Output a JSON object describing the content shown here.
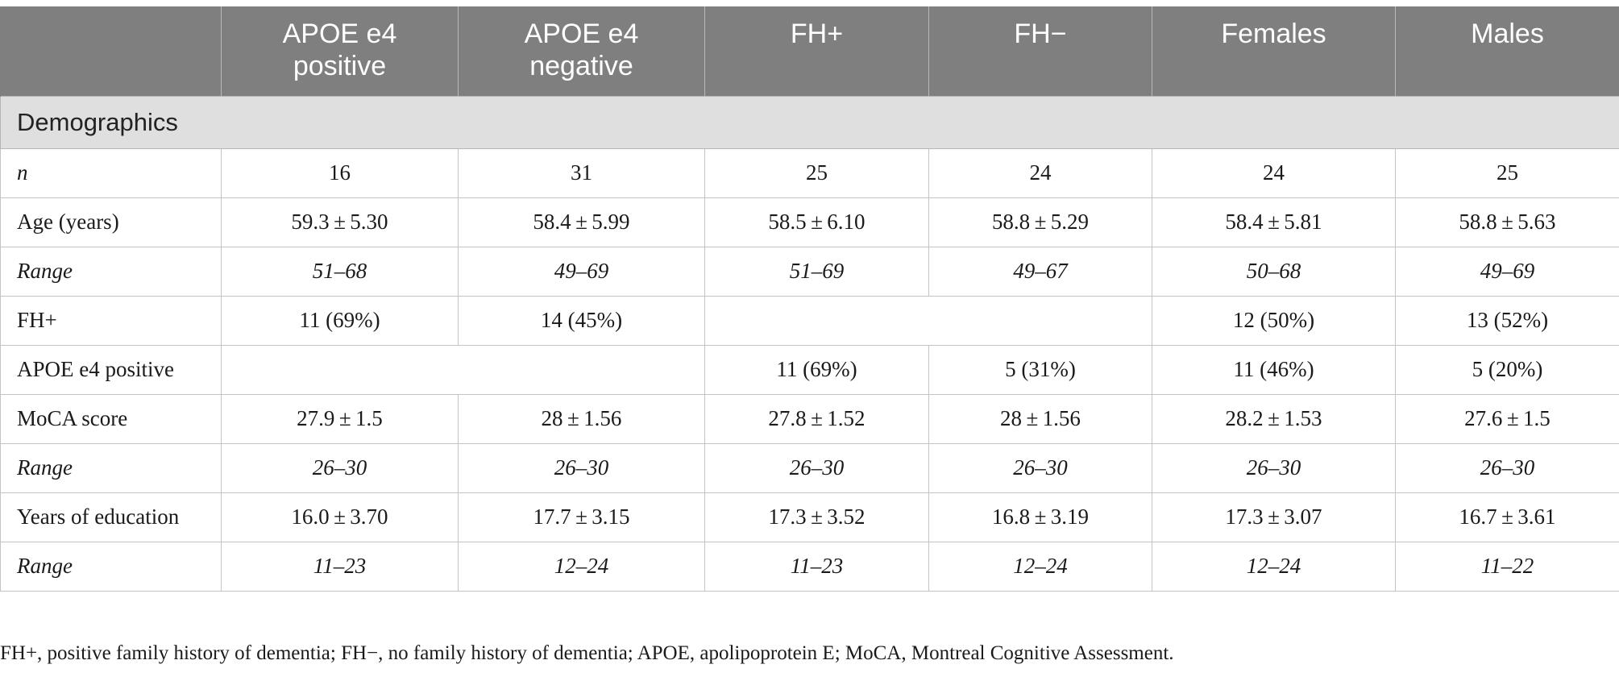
{
  "table": {
    "headers": [
      {
        "line1": "",
        "line2": ""
      },
      {
        "line1": "APOE e4",
        "line2": "positive"
      },
      {
        "line1": "APOE e4",
        "line2": "negative"
      },
      {
        "line1": "FH+",
        "line2": ""
      },
      {
        "line1": "FH−",
        "line2": ""
      },
      {
        "line1": "Females",
        "line2": ""
      },
      {
        "line1": "Males",
        "line2": ""
      }
    ],
    "section_title": "Demographics",
    "rows": [
      {
        "label": "n",
        "cells": [
          "16",
          "31",
          "25",
          "24",
          "24",
          "25"
        ]
      },
      {
        "label": "Age (years)",
        "cells": [
          "59.3 ± 5.30",
          "58.4 ± 5.99",
          "58.5 ± 6.10",
          "58.8 ± 5.29",
          "58.4 ± 5.81",
          "58.8 ± 5.63"
        ]
      },
      {
        "label": "Range",
        "cells": [
          "51–68",
          "49–69",
          "51–69",
          "49–67",
          "50–68",
          "49–69"
        ]
      },
      {
        "label": "FH+",
        "cells": [
          "11 (69%)",
          "14 (45%)",
          "",
          "",
          "12 (50%)",
          "13 (52%)"
        ]
      },
      {
        "label": "APOE e4 positive",
        "cells": [
          "",
          "",
          "11 (69%)",
          "5 (31%)",
          "11 (46%)",
          "5 (20%)"
        ]
      },
      {
        "label": "MoCA score",
        "cells": [
          "27.9 ± 1.5",
          "28 ± 1.56",
          "27.8 ± 1.52",
          "28 ± 1.56",
          "28.2 ± 1.53",
          "27.6 ± 1.5"
        ]
      },
      {
        "label": "Range",
        "cells": [
          "26–30",
          "26–30",
          "26–30",
          "26–30",
          "26–30",
          "26–30"
        ]
      },
      {
        "label": "Years of education",
        "cells": [
          "16.0 ± 3.70",
          "17.7 ± 3.15",
          "17.3 ± 3.52",
          "16.8 ± 3.19",
          "17.3 ± 3.07",
          "16.7 ± 3.61"
        ]
      },
      {
        "label": "Range",
        "cells": [
          "11–23",
          "12–24",
          "11–23",
          "12–24",
          "12–24",
          "11–22"
        ]
      }
    ]
  },
  "footnote": "FH+, positive family history of dementia; FH−, no family history of dementia; APOE, apolipoprotein E; MoCA, Montreal Cognitive Assessment.",
  "colors": {
    "header_background": "#7e7f7e",
    "header_text": "#ffffff",
    "section_background": "#e0dfe0",
    "grid_line": "#c4c4c4"
  }
}
